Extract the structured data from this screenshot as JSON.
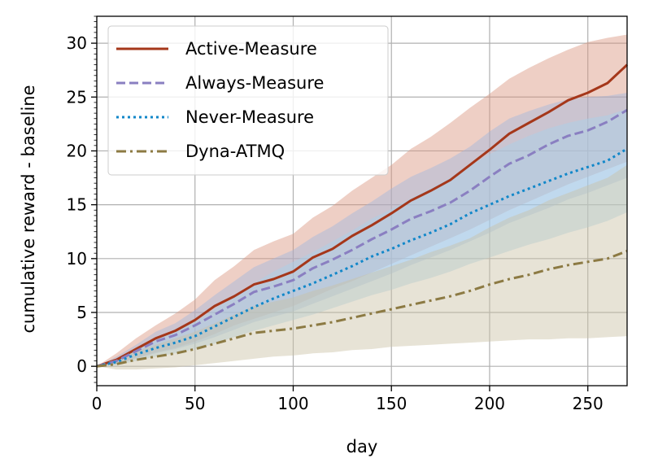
{
  "chart_data": {
    "type": "line",
    "xlabel": "day",
    "ylabel": "cumulative reward - baseline",
    "xlim": [
      0,
      270
    ],
    "ylim": [
      -1.8,
      32.5
    ],
    "xticks": [
      0,
      50,
      100,
      150,
      200,
      250
    ],
    "yticks": [
      0,
      5,
      10,
      15,
      20,
      25,
      30
    ],
    "grid": true,
    "legend_position": "top-left",
    "x": [
      0,
      10,
      20,
      30,
      40,
      50,
      60,
      70,
      80,
      90,
      100,
      110,
      120,
      130,
      140,
      150,
      160,
      170,
      180,
      190,
      200,
      210,
      220,
      230,
      240,
      250,
      260,
      270
    ],
    "series": [
      {
        "name": "Active-Measure",
        "color": "#a5371a",
        "dash": "solid",
        "values": [
          0,
          0.6,
          1.6,
          2.6,
          3.3,
          4.3,
          5.6,
          6.5,
          7.6,
          8.1,
          8.8,
          10.1,
          10.9,
          12.1,
          13.1,
          14.2,
          15.4,
          16.3,
          17.3,
          18.7,
          20.1,
          21.6,
          22.6,
          23.6,
          24.7,
          25.4,
          26.3,
          28.0
        ],
        "band_lower": [
          0,
          0.2,
          0.8,
          1.3,
          1.7,
          2.3,
          3.0,
          3.8,
          4.4,
          5.0,
          5.6,
          6.4,
          7.2,
          7.9,
          8.7,
          9.5,
          10.3,
          11.1,
          11.9,
          12.7,
          13.6,
          14.5,
          15.3,
          16.1,
          16.9,
          17.6,
          18.3,
          19.0
        ],
        "band_upper": [
          0,
          1.2,
          2.6,
          3.8,
          4.9,
          6.2,
          8.0,
          9.3,
          10.8,
          11.6,
          12.3,
          13.8,
          14.9,
          16.3,
          17.5,
          18.7,
          20.2,
          21.3,
          22.6,
          24.0,
          25.3,
          26.7,
          27.7,
          28.6,
          29.4,
          30.1,
          30.5,
          30.8
        ],
        "band_color": "#d9957f"
      },
      {
        "name": "Always-Measure",
        "color": "#8a7fc1",
        "dash": "dashed",
        "values": [
          0,
          0.5,
          1.4,
          2.3,
          2.9,
          3.8,
          4.8,
          5.8,
          6.9,
          7.4,
          8.0,
          9.1,
          9.9,
          10.8,
          11.8,
          12.7,
          13.7,
          14.4,
          15.2,
          16.3,
          17.6,
          18.8,
          19.6,
          20.6,
          21.4,
          21.9,
          22.7,
          23.8
        ],
        "band_lower": [
          0,
          0.2,
          0.7,
          1.2,
          1.6,
          2.1,
          2.7,
          3.4,
          4.1,
          4.6,
          5.1,
          5.8,
          6.5,
          7.2,
          7.9,
          8.6,
          9.4,
          10.1,
          10.8,
          11.6,
          12.4,
          13.3,
          14.0,
          14.7,
          15.5,
          16.1,
          16.8,
          17.5
        ],
        "band_upper": [
          0,
          0.9,
          2.0,
          3.2,
          4.0,
          5.2,
          6.6,
          7.9,
          9.2,
          10.0,
          10.8,
          12.0,
          13.0,
          14.2,
          15.3,
          16.5,
          17.6,
          18.4,
          19.3,
          20.4,
          21.8,
          23.0,
          23.7,
          24.3,
          24.8,
          25.0,
          25.1,
          25.4
        ],
        "band_color": "#9fb6de"
      },
      {
        "name": "Never-Measure",
        "color": "#1187c9",
        "dash": "dotted",
        "values": [
          0,
          0.4,
          1.1,
          1.7,
          2.2,
          2.8,
          3.7,
          4.6,
          5.5,
          6.3,
          7.0,
          7.7,
          8.5,
          9.3,
          10.2,
          10.9,
          11.7,
          12.4,
          13.2,
          14.2,
          15.0,
          15.8,
          16.5,
          17.2,
          17.9,
          18.5,
          19.1,
          20.2
        ],
        "band_lower": [
          0,
          0.1,
          0.5,
          0.9,
          1.2,
          1.6,
          2.1,
          2.7,
          3.3,
          3.8,
          4.3,
          4.8,
          5.4,
          6.0,
          6.6,
          7.1,
          7.7,
          8.2,
          8.8,
          9.5,
          10.1,
          10.7,
          11.3,
          11.8,
          12.4,
          12.9,
          13.5,
          14.3
        ],
        "band_upper": [
          0,
          0.7,
          1.7,
          2.6,
          3.3,
          4.1,
          5.3,
          6.5,
          7.7,
          8.8,
          9.7,
          10.6,
          11.6,
          12.6,
          13.7,
          14.6,
          15.6,
          16.5,
          17.5,
          18.6,
          19.7,
          20.6,
          21.4,
          22.1,
          22.6,
          23.0,
          23.3,
          23.9
        ],
        "band_color": "#a9d2ea"
      },
      {
        "name": "Dyna-ATMQ",
        "color": "#8c7a43",
        "dash": "dashdot",
        "values": [
          0,
          0.2,
          0.6,
          0.9,
          1.2,
          1.6,
          2.1,
          2.6,
          3.1,
          3.3,
          3.5,
          3.8,
          4.1,
          4.5,
          4.9,
          5.3,
          5.7,
          6.1,
          6.5,
          7.0,
          7.6,
          8.1,
          8.5,
          9.0,
          9.4,
          9.7,
          10.0,
          10.7
        ],
        "band_lower": [
          0,
          -0.3,
          -0.3,
          -0.2,
          -0.1,
          0.1,
          0.3,
          0.5,
          0.7,
          0.9,
          1.0,
          1.2,
          1.3,
          1.5,
          1.6,
          1.8,
          1.9,
          2.0,
          2.1,
          2.2,
          2.3,
          2.4,
          2.5,
          2.5,
          2.6,
          2.6,
          2.7,
          2.8
        ],
        "band_upper": [
          0,
          0.6,
          1.4,
          2.0,
          2.6,
          3.2,
          4.0,
          4.8,
          5.6,
          6.0,
          6.4,
          7.0,
          7.5,
          8.1,
          8.7,
          9.3,
          9.9,
          10.6,
          11.2,
          11.9,
          12.9,
          13.8,
          14.5,
          15.4,
          16.1,
          16.8,
          17.5,
          18.7
        ],
        "band_color": "#c9c2a4"
      }
    ]
  }
}
